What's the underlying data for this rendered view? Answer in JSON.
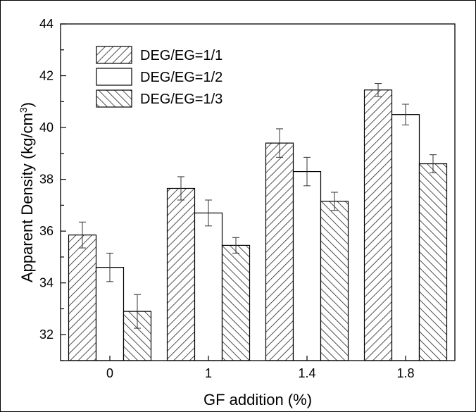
{
  "chart_data": {
    "type": "bar",
    "xlabel": "GF addition (%)",
    "ylabel_main": "Apparent Density (kg/cm",
    "ylabel_sup": "3",
    "ylabel_close": ")",
    "ylim": [
      31,
      44
    ],
    "yticks": [
      "32",
      "34",
      "36",
      "38",
      "40",
      "42",
      "44"
    ],
    "categories": [
      "0",
      "1",
      "1.4",
      "1.8"
    ],
    "grid": false,
    "legend_position": "top-left",
    "series": [
      {
        "name": "DEG/EG=1/1",
        "pattern": "hatch-forward",
        "values": [
          35.85,
          37.65,
          39.4,
          41.45
        ],
        "errors": [
          0.5,
          0.45,
          0.55,
          0.25
        ]
      },
      {
        "name": "DEG/EG=1/2",
        "pattern": "plain",
        "values": [
          34.6,
          36.7,
          38.3,
          40.5
        ],
        "errors": [
          0.55,
          0.5,
          0.55,
          0.4
        ]
      },
      {
        "name": "DEG/EG=1/3",
        "pattern": "hatch-back",
        "values": [
          32.9,
          35.45,
          37.15,
          38.6
        ],
        "errors": [
          0.65,
          0.3,
          0.35,
          0.35
        ]
      }
    ],
    "colors": {
      "fill": "#ffffff",
      "stroke": "#000000",
      "hatch": "#222222"
    }
  }
}
